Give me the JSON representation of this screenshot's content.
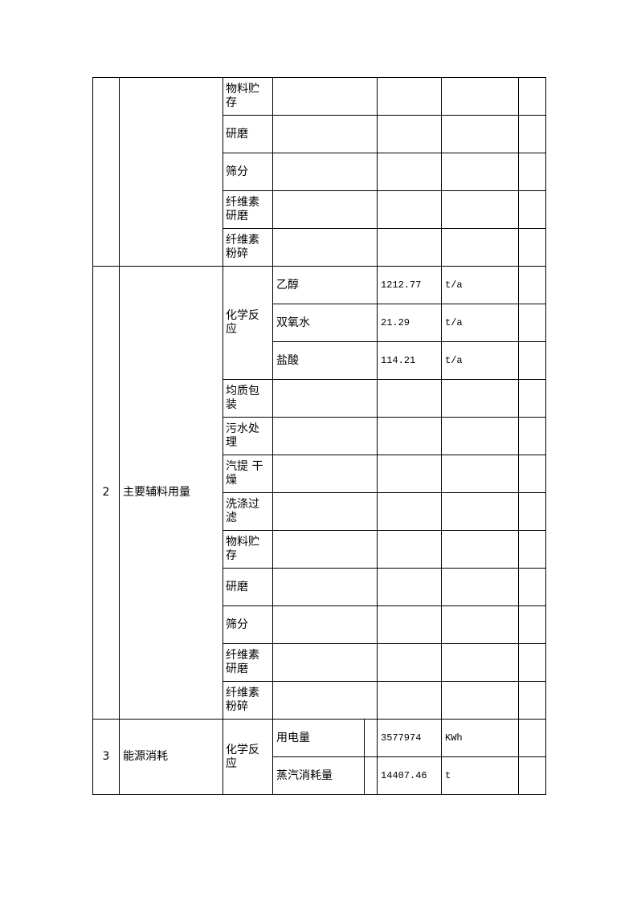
{
  "section1": {
    "processes": [
      "物料贮存",
      "研磨",
      "筛分",
      "纤维素研磨",
      "纤维素粉碎"
    ]
  },
  "section2": {
    "number": "2",
    "category": "主要辅料用量",
    "reaction": {
      "process": "化学反应",
      "materials": [
        {
          "name": "乙醇",
          "value": "1212.77",
          "unit": "t/a"
        },
        {
          "name": "双氧水",
          "value": "21.29",
          "unit": "t/a"
        },
        {
          "name": "盐酸",
          "value": "114.21",
          "unit": "t/a"
        }
      ]
    },
    "processes": [
      "均质包装",
      "污水处理",
      "汽提 干燥",
      "洗涤过滤",
      "物料贮存",
      "研磨",
      "筛分",
      "纤维素研磨",
      "纤维素粉碎"
    ]
  },
  "section3": {
    "number": "3",
    "category": "能源消耗",
    "process": "化学反应",
    "items": [
      {
        "name": "用电量",
        "value": "3577974",
        "unit": "KWh"
      },
      {
        "name": "蒸汽消耗量",
        "value": "14407.46",
        "unit": "t"
      }
    ]
  }
}
